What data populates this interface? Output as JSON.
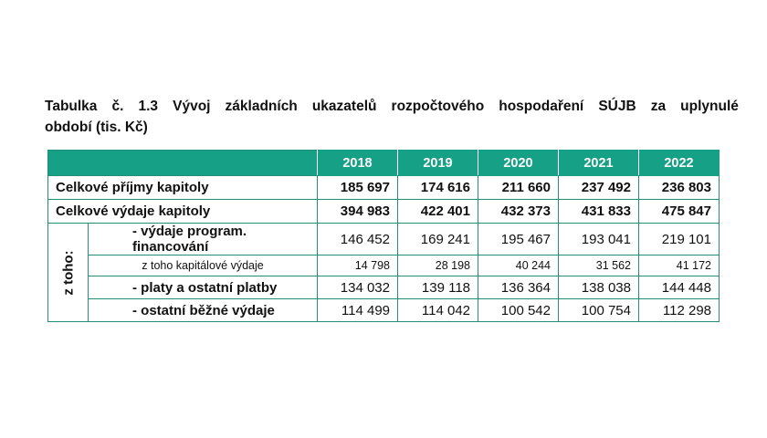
{
  "caption": {
    "line1": "Tabulka č. 1.3  Vývoj základních ukazatelů rozpočtového hospodaření SÚJB za uplynulé",
    "line1_parts": [
      "Tabulka",
      "č.",
      "1.3",
      "Vývoj",
      "základních",
      "ukazatelů",
      "rozpočtového",
      "hospodaření",
      "SÚJB",
      "za",
      "uplynulé"
    ],
    "line2": "období (tis. Kč)"
  },
  "table": {
    "years": [
      "2018",
      "2019",
      "2020",
      "2021",
      "2022"
    ],
    "group_label": "z toho:",
    "rows": [
      {
        "label": "Celkové příjmy kapitoly",
        "values": [
          "185 697",
          "174 616",
          "211 660",
          "237 492",
          "236 803"
        ]
      },
      {
        "label": "Celkové výdaje kapitoly",
        "values": [
          "394 983",
          "422 401",
          "432 373",
          "431 833",
          "475 847"
        ]
      },
      {
        "label": "- výdaje program. financování",
        "values": [
          "146 452",
          "169 241",
          "195 467",
          "193 041",
          "219 101"
        ]
      },
      {
        "label": "z toho kapitálové výdaje",
        "values": [
          "14 798",
          "28 198",
          "40 244",
          "31 562",
          "41 172"
        ]
      },
      {
        "label": "- platy a ostatní platby",
        "values": [
          "134 032",
          "139 118",
          "136 364",
          "138 038",
          "144 448"
        ]
      },
      {
        "label": "- ostatní běžné výdaje",
        "values": [
          "114 499",
          "114 042",
          "100 542",
          "100 754",
          "112 298"
        ]
      }
    ]
  }
}
